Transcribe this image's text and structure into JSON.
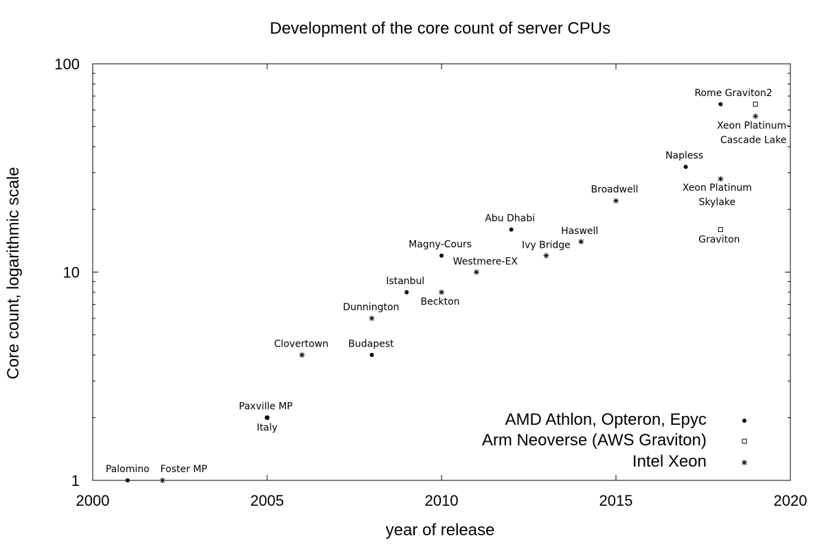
{
  "chart_data": {
    "type": "scatter",
    "title": "Development of the core count of server CPUs",
    "xlabel": "year of release",
    "ylabel": "Core count, logarithmic scale",
    "xlim": [
      2000,
      2020
    ],
    "ylim": [
      1,
      100
    ],
    "yscale": "log",
    "x_ticks": [
      "2000",
      "2005",
      "2010",
      "2015",
      "2020"
    ],
    "y_ticks": [
      "1",
      "10",
      "100"
    ],
    "grid": false,
    "legend_position": "bottom-right",
    "series": [
      {
        "name": "AMD Athlon, Opteron, Epyc",
        "marker": "filled-dot",
        "points": [
          {
            "x": 2001,
            "y": 1,
            "label": "Palomino"
          },
          {
            "x": 2005,
            "y": 2,
            "label": "Italy"
          },
          {
            "x": 2008,
            "y": 4,
            "label": "Budapest"
          },
          {
            "x": 2009,
            "y": 8,
            "label": "Istanbul"
          },
          {
            "x": 2010,
            "y": 12,
            "label": "Magny-Cours"
          },
          {
            "x": 2012,
            "y": 16,
            "label": "Abu Dhabi"
          },
          {
            "x": 2017,
            "y": 32,
            "label": "Napless"
          },
          {
            "x": 2018,
            "y": 64,
            "label": "Rome"
          }
        ]
      },
      {
        "name": "Arm  Neoverse (AWS Graviton)",
        "marker": "open-square",
        "points": [
          {
            "x": 2018,
            "y": 16,
            "label": "Graviton"
          },
          {
            "x": 2019,
            "y": 64,
            "label": "Graviton2"
          }
        ]
      },
      {
        "name": "Intel Xeon",
        "marker": "asterisk",
        "points": [
          {
            "x": 2002,
            "y": 1,
            "label": "Foster MP"
          },
          {
            "x": 2005,
            "y": 2,
            "label": "Paxville MP"
          },
          {
            "x": 2006,
            "y": 4,
            "label": "Clovertown"
          },
          {
            "x": 2008,
            "y": 6,
            "label": "Dunnington"
          },
          {
            "x": 2010,
            "y": 8,
            "label": "Beckton"
          },
          {
            "x": 2011,
            "y": 10,
            "label": "Westmere-EX"
          },
          {
            "x": 2013,
            "y": 12,
            "label": "Ivy Bridge"
          },
          {
            "x": 2014,
            "y": 14,
            "label": "Haswell"
          },
          {
            "x": 2015,
            "y": 22,
            "label": "Broadwell"
          },
          {
            "x": 2018,
            "y": 28,
            "label": [
              "Xeon Platinum",
              "Skylake"
            ]
          },
          {
            "x": 2019,
            "y": 56,
            "label": [
              "Xeon Platinum-",
              "Cascade Lake"
            ]
          }
        ]
      }
    ]
  }
}
